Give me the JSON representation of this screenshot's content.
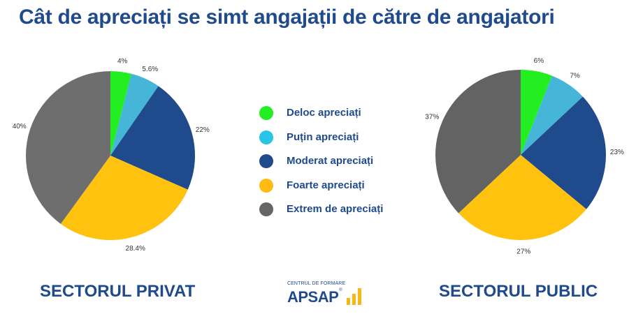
{
  "title": "Cât de apreciați se simt angajații de către de angajatori",
  "legend": [
    {
      "label": "Deloc apreciați",
      "color": "#22ee22"
    },
    {
      "label": "Puțin apreciați",
      "color": "#3db7d6"
    },
    {
      "label": "Moderat apreciați",
      "color": "#1f4a8c"
    },
    {
      "label": "Foarte apreciați",
      "color": "#ffc20e"
    },
    {
      "label": "Extrem de apreciați",
      "color": "#6e6e6e"
    }
  ],
  "logo": {
    "top_text": "CENTRUL DE FORMARE",
    "brand": "APSAP",
    "reg": "®"
  },
  "chart_data": [
    {
      "type": "pie",
      "title": "SECTORUL PRIVAT",
      "categories": [
        "Deloc apreciați",
        "Puțin apreciați",
        "Moderat apreciați",
        "Foarte apreciați",
        "Extrem de apreciați"
      ],
      "values": [
        4,
        5.6,
        22,
        28.4,
        40
      ],
      "labels": [
        "4%",
        "5.6%",
        "22%",
        "28.4%",
        "40%"
      ],
      "colors": [
        "#22ee22",
        "#45b6d8",
        "#1f4a8c",
        "#ffc20e",
        "#6e6e6e"
      ],
      "start": "top",
      "direction": "clockwise"
    },
    {
      "type": "pie",
      "title": "SECTORUL PUBLIC",
      "categories": [
        "Deloc apreciați",
        "Puțin apreciați",
        "Moderat apreciați",
        "Foarte apreciați",
        "Extrem de apreciați"
      ],
      "values": [
        6,
        7,
        23,
        27,
        37
      ],
      "labels": [
        "6%",
        "7%",
        "23%",
        "27%",
        "37%"
      ],
      "colors": [
        "#22ee22",
        "#45b6d8",
        "#1f4a8c",
        "#ffc20e",
        "#636363"
      ],
      "start": "top",
      "direction": "clockwise"
    }
  ]
}
